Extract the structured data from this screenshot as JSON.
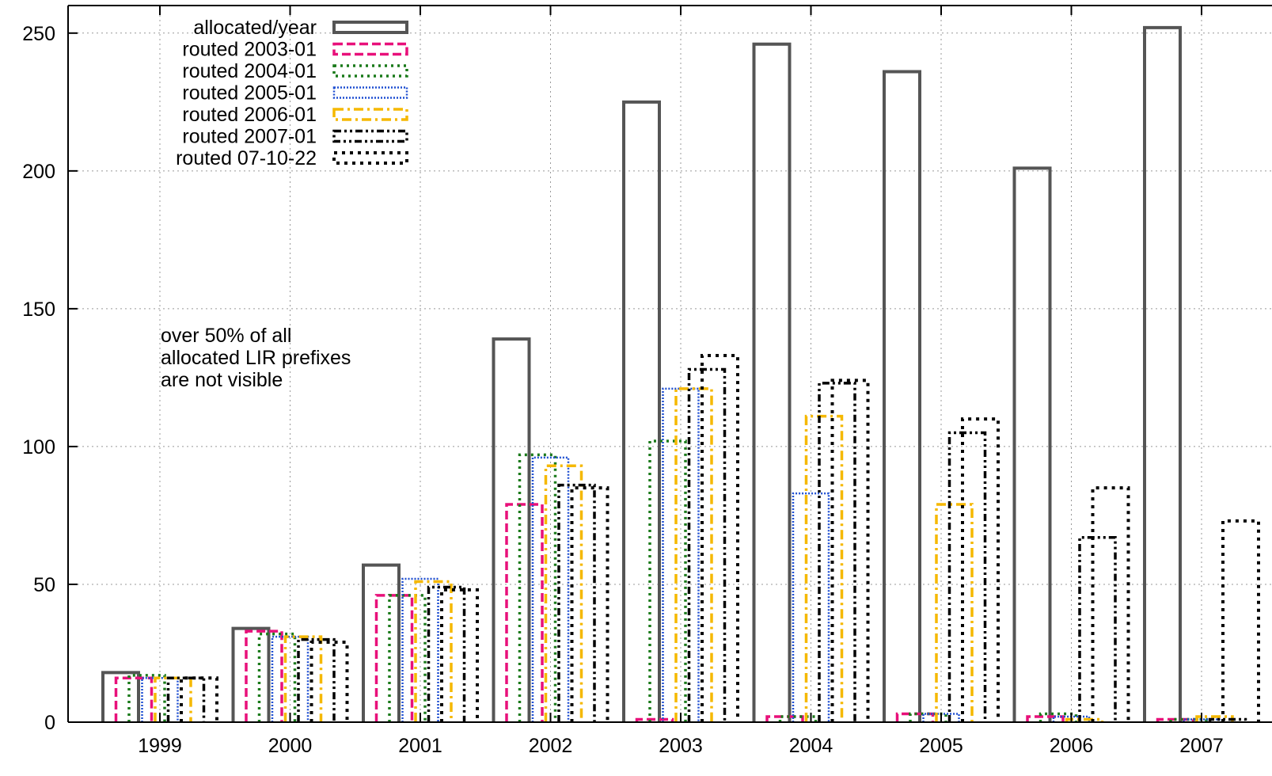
{
  "chart_data": {
    "type": "bar",
    "categories": [
      "1999",
      "2000",
      "2001",
      "2002",
      "2003",
      "2004",
      "2005",
      "2006",
      "2007"
    ],
    "series": [
      {
        "name": "allocated/year",
        "color": "#555555",
        "dash": "solid",
        "values": [
          18,
          34,
          57,
          139,
          225,
          246,
          236,
          201,
          252
        ]
      },
      {
        "name": "routed 2003-01",
        "color": "#e8107a",
        "dash": "dashed",
        "values": [
          16,
          33,
          46,
          79,
          1,
          2,
          3,
          2,
          1
        ]
      },
      {
        "name": "routed 2004-01",
        "color": "#1a7a1a",
        "dash": "dotted",
        "values": [
          17,
          32,
          46,
          97,
          102,
          2,
          3,
          3,
          1
        ]
      },
      {
        "name": "routed 2005-01",
        "color": "#1f4fd1",
        "dash": "dense-dotted",
        "values": [
          16,
          31,
          52,
          96,
          121,
          83,
          3,
          2,
          1
        ]
      },
      {
        "name": "routed 2006-01",
        "color": "#f5b800",
        "dash": "dash-dot",
        "values": [
          16,
          31,
          51,
          93,
          121,
          111,
          79,
          1,
          2
        ]
      },
      {
        "name": "routed 2007-01",
        "color": "#000000",
        "dash": "dash-dot-dot",
        "values": [
          16,
          30,
          49,
          86,
          128,
          123,
          105,
          67,
          1
        ]
      },
      {
        "name": "routed 07-10-22",
        "color": "#000000",
        "dash": "coarse-dotted",
        "values": [
          16,
          29,
          48,
          85,
          133,
          124,
          110,
          85,
          73
        ]
      }
    ],
    "ylim": [
      0,
      260
    ],
    "yticks": [
      0,
      50,
      100,
      150,
      200,
      250
    ],
    "xlabel": "",
    "ylabel": "",
    "title": "",
    "grid": true,
    "legend_position": "top-left",
    "annotation": [
      "over 50% of all",
      "allocated LIR prefixes",
      "are not visible"
    ]
  }
}
